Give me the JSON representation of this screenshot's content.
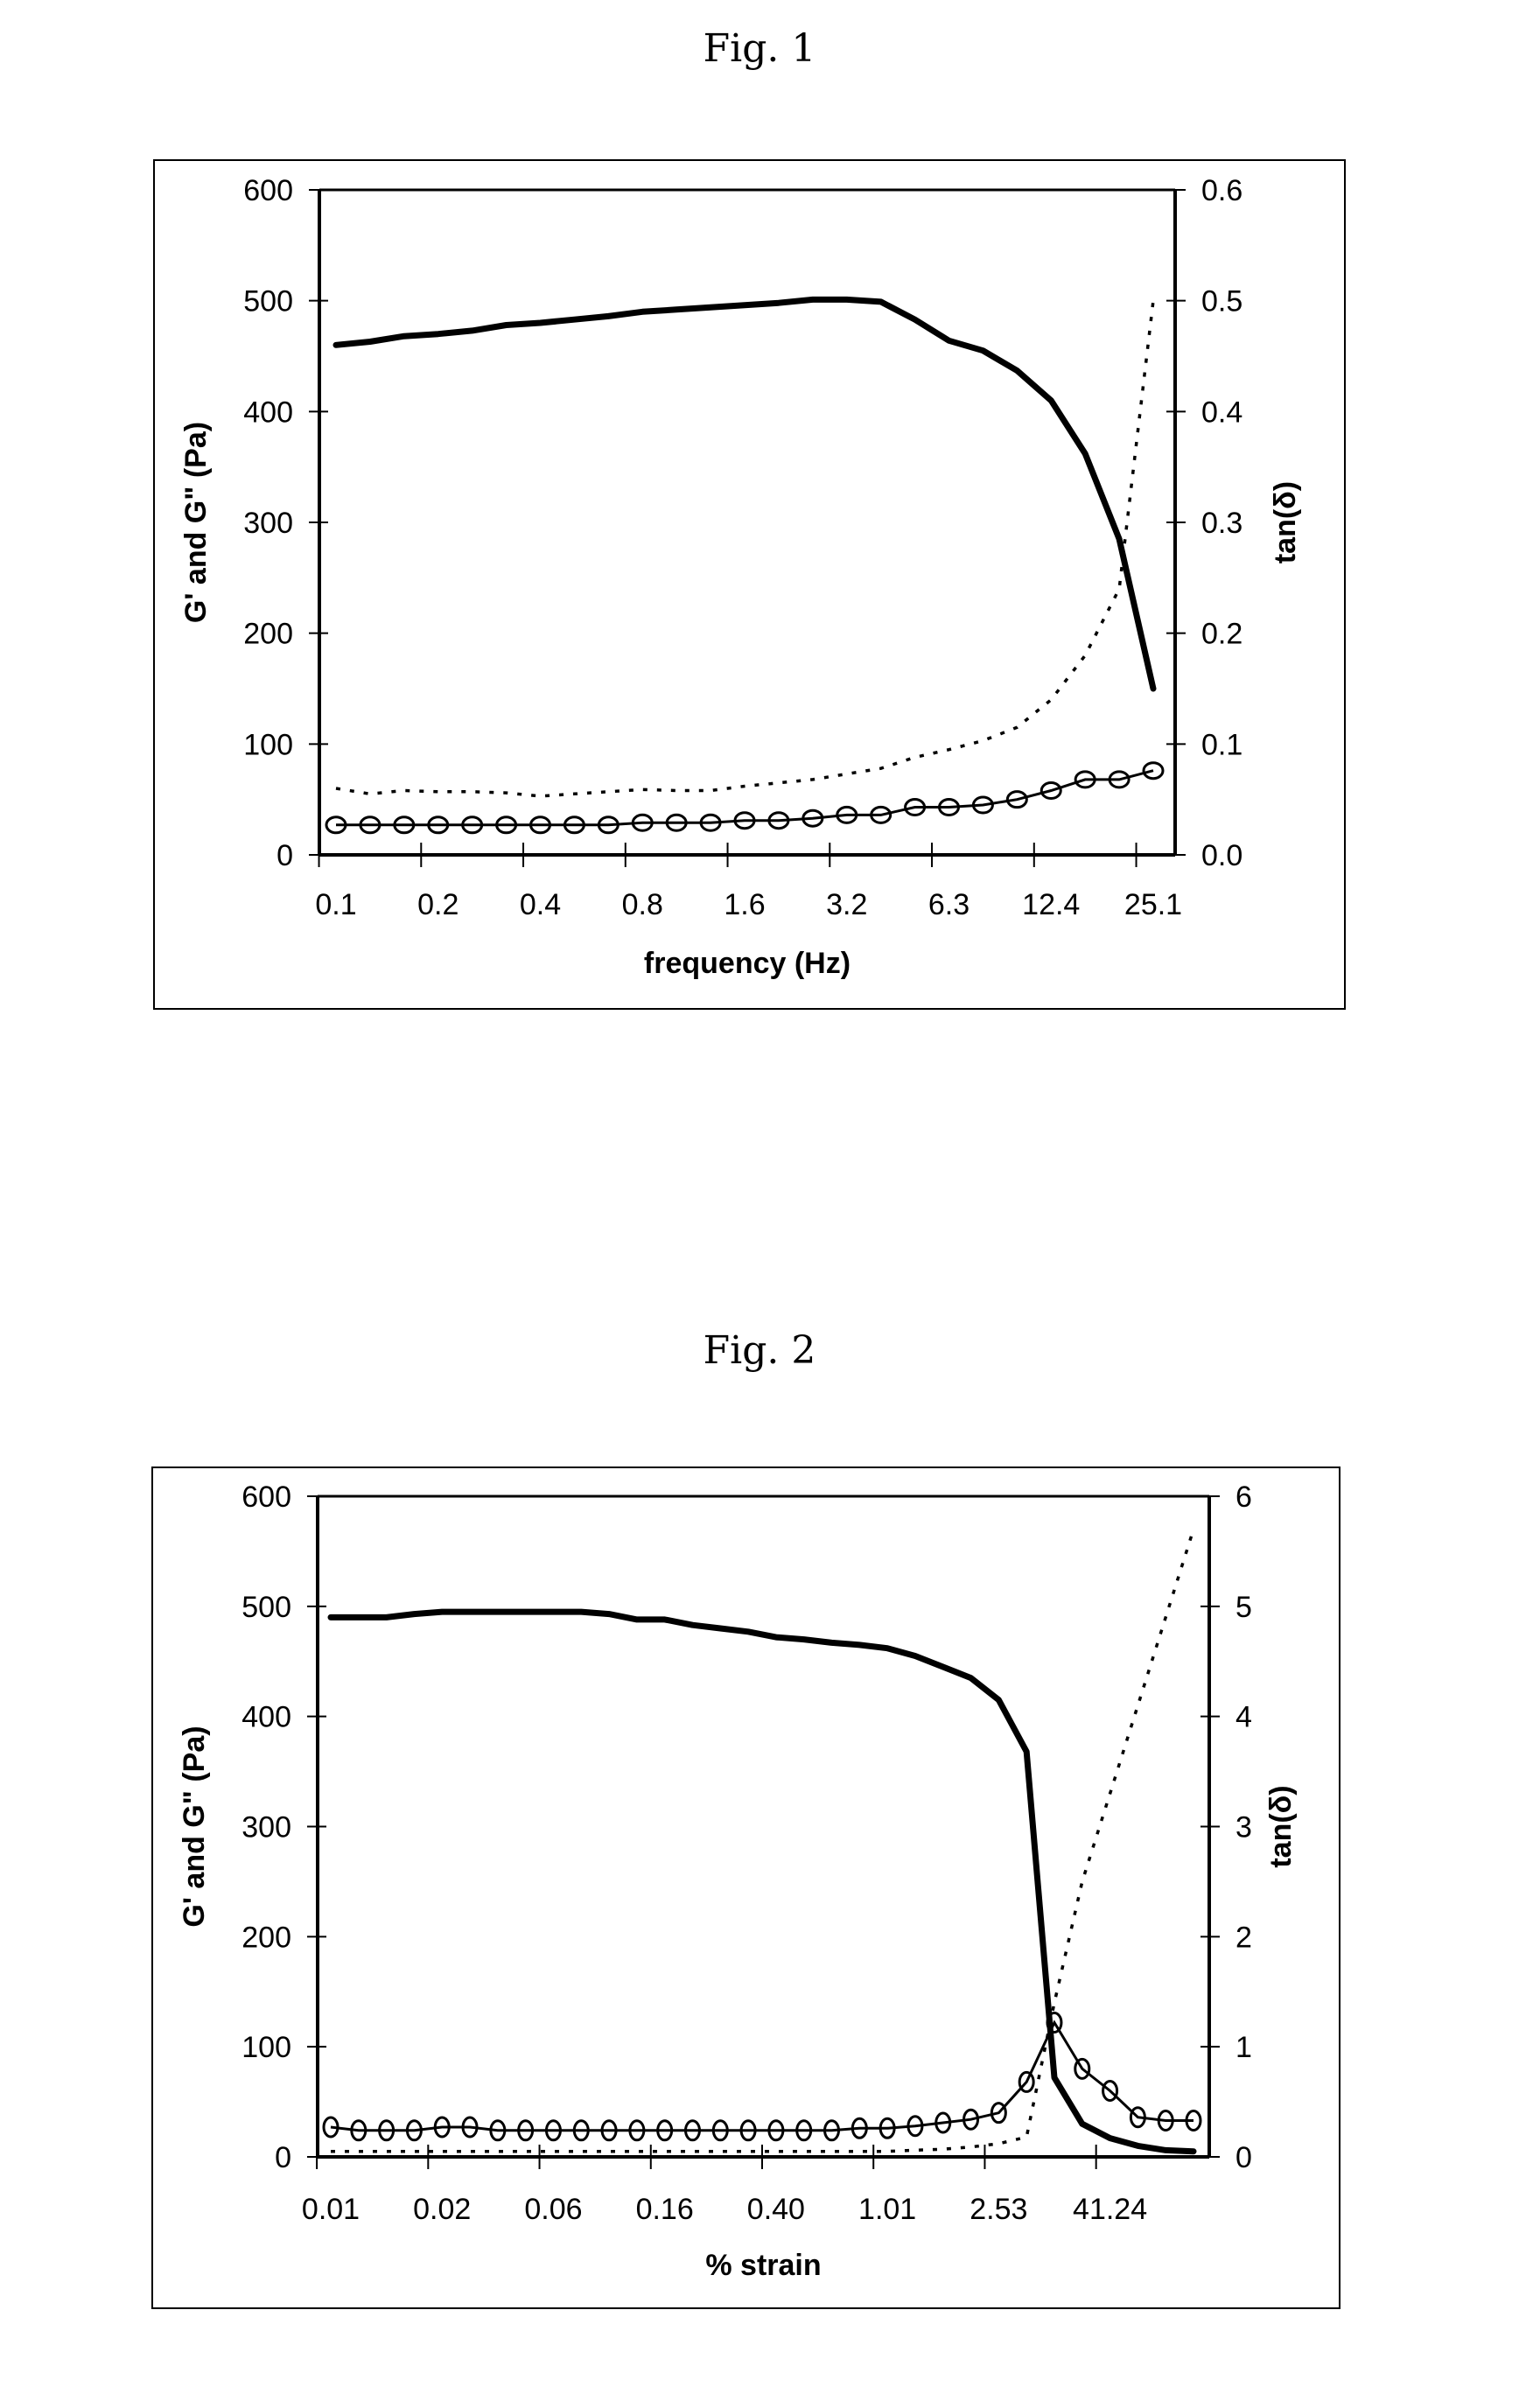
{
  "figures": [
    {
      "title": "Fig. 1"
    },
    {
      "title": "Fig. 2"
    }
  ],
  "chart_data": [
    {
      "type": "line",
      "title": "Fig. 1",
      "xlabel": "frequency (Hz)",
      "ylabel": "G' and G\" (Pa)",
      "y2label": "tan(δ)",
      "ylim": [
        0,
        600
      ],
      "y2lim": [
        0,
        0.6
      ],
      "yticks": [
        "0",
        "100",
        "200",
        "300",
        "400",
        "500",
        "600"
      ],
      "y2ticks": [
        "0.0",
        "0.1",
        "0.2",
        "0.3",
        "0.4",
        "0.5",
        "0.6"
      ],
      "xtick_labels": [
        "0.1",
        "0.2",
        "0.4",
        "0.8",
        "1.6",
        "3.2",
        "6.3",
        "12.4",
        "25.1"
      ],
      "xtick_label_every": 3,
      "grid": false,
      "legend": null,
      "n_points": 25,
      "series": [
        {
          "name": "G'",
          "axis": "left",
          "style": "thick-solid",
          "values": [
            460,
            463,
            468,
            470,
            473,
            478,
            480,
            483,
            486,
            490,
            492,
            494,
            496,
            498,
            501,
            501,
            499,
            483,
            464,
            455,
            437,
            410,
            362,
            285,
            150
          ]
        },
        {
          "name": "G\"",
          "axis": "left",
          "style": "solid-circle-markers",
          "values": [
            27,
            27,
            27,
            27,
            27,
            27,
            27,
            27,
            27,
            29,
            29,
            29,
            31,
            31,
            33,
            36,
            36,
            43,
            43,
            45,
            50,
            58,
            68,
            68,
            76
          ]
        },
        {
          "name": "tan(δ)",
          "axis": "right",
          "style": "dotted",
          "values": [
            0.06,
            0.055,
            0.058,
            0.057,
            0.057,
            0.056,
            0.053,
            0.055,
            0.057,
            0.059,
            0.058,
            0.058,
            0.062,
            0.065,
            0.068,
            0.073,
            0.078,
            0.088,
            0.095,
            0.103,
            0.115,
            0.14,
            0.18,
            0.24,
            0.5
          ]
        }
      ]
    },
    {
      "type": "line",
      "title": "Fig. 2",
      "xlabel": "% strain",
      "ylabel": "G' and G\" (Pa)",
      "y2label": "tan(δ)",
      "ylim": [
        0,
        600
      ],
      "y2lim": [
        0,
        6
      ],
      "yticks": [
        "0",
        "100",
        "200",
        "300",
        "400",
        "500",
        "600"
      ],
      "y2ticks": [
        "0",
        "1",
        "2",
        "3",
        "4",
        "5",
        "6"
      ],
      "xtick_labels": [
        "0.01",
        "0.02",
        "0.06",
        "0.16",
        "0.40",
        "1.01",
        "2.53",
        "41.24"
      ],
      "xtick_label_every": 4,
      "grid": false,
      "legend": null,
      "n_points": 32,
      "series": [
        {
          "name": "G'",
          "axis": "left",
          "style": "thick-solid",
          "values": [
            490,
            490,
            490,
            493,
            495,
            495,
            495,
            495,
            495,
            495,
            493,
            488,
            488,
            483,
            480,
            477,
            472,
            470,
            467,
            465,
            462,
            455,
            445,
            435,
            415,
            368,
            72,
            30,
            17,
            10,
            6,
            5
          ]
        },
        {
          "name": "G\"",
          "axis": "left",
          "style": "solid-circle-markers",
          "values": [
            27,
            24,
            24,
            24,
            27,
            27,
            24,
            24,
            24,
            24,
            24,
            24,
            24,
            24,
            24,
            24,
            24,
            24,
            24,
            26,
            26,
            28,
            31,
            34,
            40,
            68,
            122,
            80,
            60,
            36,
            33,
            33
          ]
        },
        {
          "name": "tan(δ)",
          "axis": "right",
          "style": "dotted",
          "values": [
            0.05,
            0.05,
            0.05,
            0.05,
            0.05,
            0.05,
            0.05,
            0.05,
            0.05,
            0.05,
            0.05,
            0.05,
            0.05,
            0.05,
            0.05,
            0.05,
            0.05,
            0.05,
            0.05,
            0.05,
            0.05,
            0.06,
            0.07,
            0.09,
            0.12,
            0.18,
            1.4,
            2.5,
            3.3,
            4.1,
            4.9,
            5.7
          ]
        }
      ]
    }
  ]
}
